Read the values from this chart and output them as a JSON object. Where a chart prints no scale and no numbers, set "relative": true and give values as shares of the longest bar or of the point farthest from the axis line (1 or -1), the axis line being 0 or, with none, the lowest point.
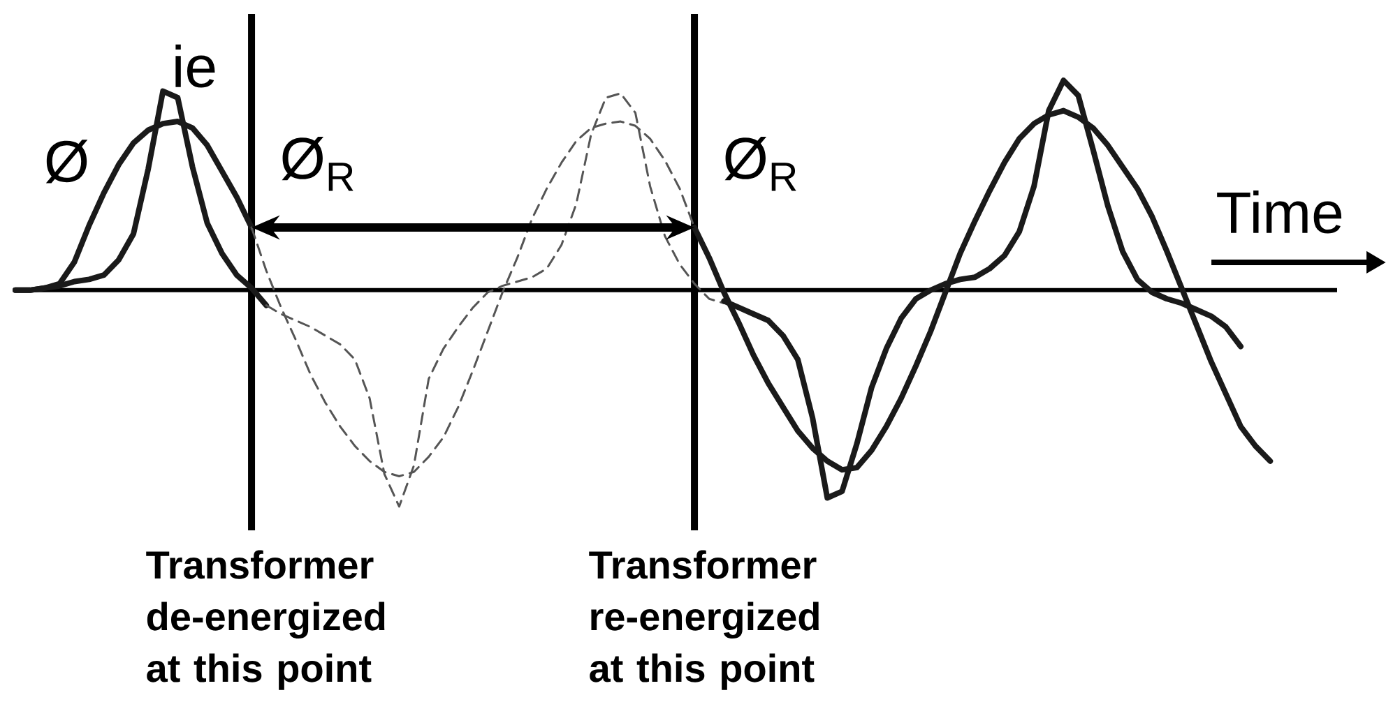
{
  "chart_data": {
    "type": "line",
    "relative": true,
    "xlabel": "Time",
    "categories": [
      null,
      null,
      null,
      null,
      null,
      null,
      null,
      null,
      null,
      null,
      null,
      null,
      null,
      null,
      null,
      null,
      null,
      null,
      null,
      null,
      null,
      null,
      null,
      null,
      null,
      null,
      null,
      null,
      null,
      null,
      null,
      null,
      null,
      null,
      null,
      null,
      null,
      null,
      null,
      null,
      null,
      null,
      null,
      null,
      null,
      null,
      null,
      null,
      null,
      null,
      null,
      null,
      null,
      null,
      null,
      null,
      null,
      null,
      null,
      null,
      null,
      null,
      null,
      null,
      null,
      null,
      null,
      null,
      null,
      null,
      null,
      null,
      null,
      null,
      null,
      null,
      null,
      null,
      null,
      null,
      null,
      null,
      null,
      null,
      null,
      null,
      null,
      null,
      null,
      null
    ],
    "series": [
      {
        "name": "Ø",
        "color": "#1a1a1a",
        "line_style": "solid",
        "values": [
          0,
          0,
          0.01,
          0.03,
          0.13,
          0.3,
          0.45,
          0.58,
          0.68,
          0.74,
          0.77,
          0.78,
          0.75,
          0.67,
          0.55,
          0.43,
          0.29,
          null,
          null,
          null,
          null,
          null,
          null,
          null,
          null,
          null,
          null,
          null,
          null,
          null,
          null,
          null,
          null,
          null,
          null,
          null,
          null,
          null,
          null,
          null,
          null,
          null,
          null,
          null,
          null,
          null,
          null,
          null,
          null,
          null,
          null,
          null,
          null,
          null,
          null,
          null,
          null,
          null,
          null,
          null,
          null,
          null,
          null,
          null,
          null,
          null,
          null,
          null,
          null,
          null,
          null,
          null,
          null,
          null,
          null,
          null,
          null,
          null,
          null,
          null,
          null,
          null,
          null,
          null,
          null,
          null,
          null,
          null,
          null,
          null
        ]
      },
      {
        "name": "ie",
        "color": "#1a1a1a",
        "line_style": "solid",
        "values": [
          0,
          0,
          0.01,
          0.02,
          0.04,
          0.05,
          0.07,
          0.14,
          0.26,
          0.56,
          0.92,
          0.89,
          0.57,
          0.31,
          0.17,
          0.07,
          0.01,
          -0.07,
          null,
          null,
          null,
          null,
          null,
          null,
          null,
          null,
          null,
          null,
          null,
          null,
          null,
          null,
          null,
          null,
          null,
          null,
          null,
          null,
          null,
          null,
          null,
          null,
          null,
          null,
          null,
          null,
          null,
          null,
          null,
          null,
          null,
          null,
          null,
          null,
          null,
          null,
          null,
          null,
          null,
          null,
          null,
          null,
          null,
          null,
          null,
          null,
          null,
          null,
          null,
          null,
          null,
          null,
          null,
          null,
          null,
          null,
          null,
          null,
          null,
          null,
          null,
          null,
          null,
          null,
          null,
          null,
          null,
          null,
          null,
          null
        ]
      },
      {
        "color": "#555555",
        "line_style": "dashed",
        "values": [
          null,
          null,
          null,
          null,
          null,
          null,
          null,
          null,
          null,
          null,
          null,
          null,
          null,
          null,
          null,
          null,
          0.29,
          0.09,
          -0.08,
          -0.23,
          -0.39,
          -0.52,
          -0.63,
          -0.72,
          -0.79,
          -0.84,
          -0.86,
          -0.84,
          -0.77,
          -0.68,
          -0.54,
          -0.37,
          -0.19,
          -0.01,
          0.15,
          0.33,
          0.47,
          0.59,
          0.69,
          0.75,
          0.77,
          0.78,
          0.76,
          0.7,
          0.6,
          0.47,
          0.29,
          null,
          null,
          null,
          null,
          null,
          null,
          null,
          null,
          null,
          null,
          null,
          null,
          null,
          null,
          null,
          null,
          null,
          null,
          null,
          null,
          null,
          null,
          null,
          null,
          null,
          null,
          null,
          null,
          null,
          null,
          null,
          null,
          null,
          null,
          null,
          null,
          null,
          null,
          null,
          null,
          null,
          null,
          null
        ]
      },
      {
        "color": "#555555",
        "line_style": "dashed",
        "values": [
          null,
          null,
          null,
          null,
          null,
          null,
          null,
          null,
          null,
          null,
          null,
          null,
          null,
          null,
          null,
          null,
          null,
          -0.07,
          -0.11,
          -0.14,
          -0.17,
          -0.21,
          -0.25,
          -0.32,
          -0.5,
          -0.85,
          -1,
          -0.81,
          -0.41,
          -0.27,
          -0.17,
          -0.08,
          -0.01,
          0.02,
          0.04,
          0.06,
          0.1,
          0.21,
          0.4,
          0.72,
          0.89,
          0.91,
          0.82,
          0.48,
          0.25,
          0.12,
          0.03,
          -0.04,
          -0.06,
          null,
          null,
          null,
          null,
          null,
          null,
          null,
          null,
          null,
          null,
          null,
          null,
          null,
          null,
          null,
          null,
          null,
          null,
          null,
          null,
          null,
          null,
          null,
          null,
          null,
          null,
          null,
          null,
          null,
          null,
          null,
          null,
          null,
          null,
          null,
          null,
          null,
          null,
          null,
          null,
          null
        ]
      },
      {
        "color": "#1a1a1a",
        "line_style": "solid",
        "values": [
          null,
          null,
          null,
          null,
          null,
          null,
          null,
          null,
          null,
          null,
          null,
          null,
          null,
          null,
          null,
          null,
          null,
          null,
          null,
          null,
          null,
          null,
          null,
          null,
          null,
          null,
          null,
          null,
          null,
          null,
          null,
          null,
          null,
          null,
          null,
          null,
          null,
          null,
          null,
          null,
          null,
          null,
          null,
          null,
          null,
          null,
          0.29,
          0.15,
          -0.01,
          -0.15,
          -0.3,
          -0.43,
          -0.54,
          -0.65,
          -0.73,
          -0.79,
          -0.83,
          -0.82,
          -0.74,
          -0.63,
          -0.5,
          -0.35,
          -0.19,
          -0.01,
          0.17,
          0.32,
          0.46,
          0.59,
          0.7,
          0.77,
          0.81,
          0.83,
          0.8,
          0.75,
          0.67,
          0.57,
          0.47,
          0.34,
          0.18,
          0.01,
          -0.16,
          -0.33,
          -0.48,
          -0.63,
          -0.72,
          -0.79,
          null,
          null,
          null,
          null
        ]
      },
      {
        "color": "#1a1a1a",
        "line_style": "solid",
        "values": [
          null,
          null,
          null,
          null,
          null,
          null,
          null,
          null,
          null,
          null,
          null,
          null,
          null,
          null,
          null,
          null,
          null,
          null,
          null,
          null,
          null,
          null,
          null,
          null,
          null,
          null,
          null,
          null,
          null,
          null,
          null,
          null,
          null,
          null,
          null,
          null,
          null,
          null,
          null,
          null,
          null,
          null,
          null,
          null,
          null,
          null,
          null,
          null,
          -0.05,
          -0.08,
          -0.11,
          -0.14,
          -0.21,
          -0.32,
          -0.59,
          -0.96,
          -0.93,
          -0.71,
          -0.45,
          -0.27,
          -0.13,
          -0.04,
          0.0,
          0.03,
          0.05,
          0.06,
          0.1,
          0.16,
          0.27,
          0.48,
          0.83,
          0.97,
          0.9,
          0.65,
          0.39,
          0.18,
          0.05,
          -0.01,
          -0.04,
          -0.06,
          -0.09,
          -0.12,
          -0.17,
          -0.26,
          null,
          null,
          null,
          null,
          null,
          null
        ]
      }
    ],
    "annotations": [
      "Ø$_{R}$",
      "Ø$_{R}$",
      "Transformer de-energized at this point",
      "Transformer re-energized at this point"
    ]
  }
}
